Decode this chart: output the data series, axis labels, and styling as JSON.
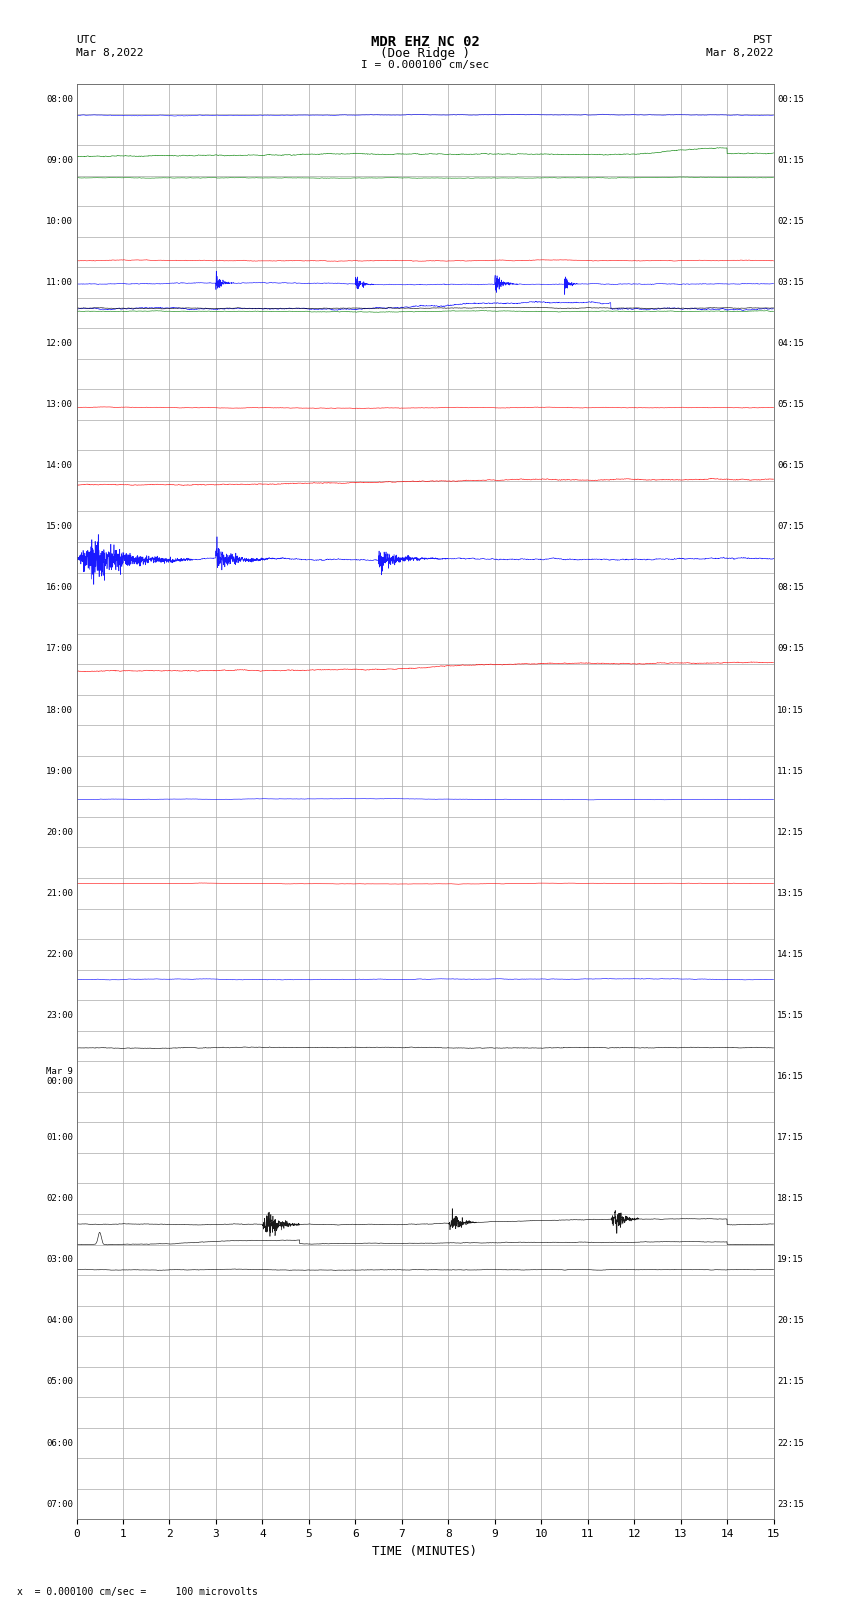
{
  "title_line1": "MDR EHZ NC 02",
  "title_line2": "(Doe Ridge )",
  "scale_text": "I = 0.000100 cm/sec",
  "utc_label": "UTC",
  "utc_date": "Mar 8,2022",
  "pst_label": "PST",
  "pst_date": "Mar 8,2022",
  "bottom_label": "TIME (MINUTES)",
  "bottom_note": "x  = 0.000100 cm/sec =     100 microvolts",
  "left_times_utc": [
    "08:00",
    "",
    "09:00",
    "",
    "10:00",
    "",
    "11:00",
    "",
    "12:00",
    "",
    "13:00",
    "",
    "14:00",
    "",
    "15:00",
    "",
    "16:00",
    "",
    "17:00",
    "",
    "18:00",
    "",
    "19:00",
    "",
    "20:00",
    "",
    "21:00",
    "",
    "22:00",
    "",
    "23:00",
    "",
    "Mar 9\n00:00",
    "",
    "01:00",
    "",
    "02:00",
    "",
    "03:00",
    "",
    "04:00",
    "",
    "05:00",
    "",
    "06:00",
    "",
    "07:00"
  ],
  "right_times_pst": [
    "00:15",
    "",
    "01:15",
    "",
    "02:15",
    "",
    "03:15",
    "",
    "04:15",
    "",
    "05:15",
    "",
    "06:15",
    "",
    "07:15",
    "",
    "08:15",
    "",
    "09:15",
    "",
    "10:15",
    "",
    "11:15",
    "",
    "12:15",
    "",
    "13:15",
    "",
    "14:15",
    "",
    "15:15",
    "",
    "16:15",
    "",
    "17:15",
    "",
    "18:15",
    "",
    "19:15",
    "",
    "20:15",
    "",
    "21:15",
    "",
    "22:15",
    "",
    "23:15"
  ],
  "n_rows": 47,
  "n_cols": 15,
  "bg_color": "#ffffff",
  "grid_color": "#aaaaaa",
  "trace_colors": [
    "#000000",
    "#ff0000",
    "#0000ff",
    "#008000"
  ],
  "figsize": [
    8.5,
    16.13
  ],
  "dpi": 100
}
